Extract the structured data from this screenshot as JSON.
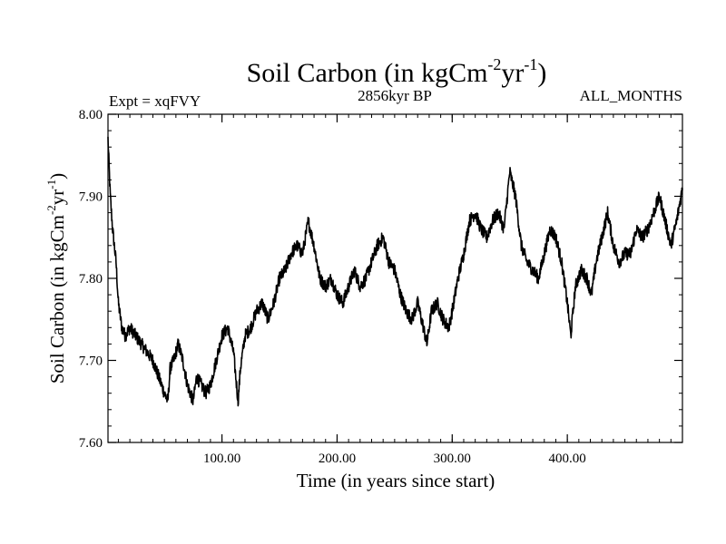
{
  "chart_data": {
    "type": "line",
    "title": "Soil Carbon (in kgCm-2yr-1)",
    "title_parts": {
      "base": "Soil Carbon (in kgCm",
      "sup1": "-2",
      "mid": "yr",
      "sup2": "-1",
      "end": ")"
    },
    "subtitle_left": "Expt = xqFVY",
    "subtitle_center": "2856kyr BP",
    "subtitle_right": "ALL_MONTHS",
    "xlabel": "Time (in years since start)",
    "ylabel": "Soil Carbon (in kgCm-2yr-1)",
    "ylabel_parts": {
      "base": "Soil Carbon (in kgCm",
      "sup1": "-2",
      "mid": "yr",
      "sup2": "-1",
      "end": ")"
    },
    "xlim": [
      1,
      500
    ],
    "ylim": [
      7.6,
      8.0
    ],
    "x_ticks": [
      100,
      200,
      300,
      400
    ],
    "x_tick_labels": [
      "100.00",
      "200.00",
      "300.00",
      "400.00"
    ],
    "y_ticks": [
      7.6,
      7.7,
      7.8,
      7.9,
      8.0
    ],
    "y_tick_labels": [
      "7.60",
      "7.70",
      "7.80",
      "7.90",
      "8.00"
    ],
    "series": [
      {
        "name": "Soil Carbon",
        "color": "#000000",
        "x": [
          1,
          3,
          5,
          8,
          10,
          13,
          16,
          20,
          25,
          30,
          35,
          40,
          45,
          50,
          53,
          55,
          58,
          62,
          66,
          70,
          75,
          78,
          82,
          86,
          90,
          95,
          100,
          105,
          110,
          114,
          116,
          120,
          125,
          130,
          135,
          140,
          145,
          150,
          155,
          160,
          165,
          170,
          175,
          180,
          185,
          190,
          195,
          200,
          205,
          210,
          215,
          220,
          225,
          230,
          235,
          240,
          245,
          250,
          255,
          260,
          265,
          270,
          275,
          278,
          282,
          287,
          292,
          297,
          300,
          305,
          310,
          315,
          320,
          325,
          330,
          335,
          340,
          345,
          350,
          355,
          360,
          365,
          370,
          375,
          380,
          385,
          390,
          395,
          400,
          403,
          407,
          412,
          417,
          421,
          425,
          430,
          435,
          440,
          445,
          450,
          455,
          460,
          465,
          470,
          475,
          480,
          485,
          490,
          495,
          500
        ],
        "y": [
          7.97,
          7.9,
          7.86,
          7.82,
          7.77,
          7.74,
          7.73,
          7.74,
          7.73,
          7.72,
          7.71,
          7.7,
          7.68,
          7.66,
          7.65,
          7.69,
          7.7,
          7.72,
          7.7,
          7.67,
          7.65,
          7.68,
          7.67,
          7.66,
          7.67,
          7.7,
          7.73,
          7.74,
          7.71,
          7.65,
          7.69,
          7.73,
          7.74,
          7.76,
          7.77,
          7.75,
          7.77,
          7.8,
          7.81,
          7.83,
          7.84,
          7.83,
          7.87,
          7.84,
          7.8,
          7.79,
          7.8,
          7.78,
          7.77,
          7.79,
          7.81,
          7.79,
          7.8,
          7.82,
          7.84,
          7.85,
          7.82,
          7.81,
          7.78,
          7.76,
          7.75,
          7.77,
          7.74,
          7.72,
          7.76,
          7.77,
          7.75,
          7.74,
          7.76,
          7.8,
          7.83,
          7.87,
          7.88,
          7.86,
          7.85,
          7.87,
          7.88,
          7.86,
          7.93,
          7.9,
          7.84,
          7.82,
          7.81,
          7.8,
          7.83,
          7.86,
          7.85,
          7.82,
          7.77,
          7.73,
          7.79,
          7.81,
          7.8,
          7.78,
          7.82,
          7.85,
          7.88,
          7.84,
          7.82,
          7.83,
          7.83,
          7.86,
          7.85,
          7.86,
          7.88,
          7.9,
          7.87,
          7.84,
          7.87,
          7.91
        ]
      }
    ]
  }
}
